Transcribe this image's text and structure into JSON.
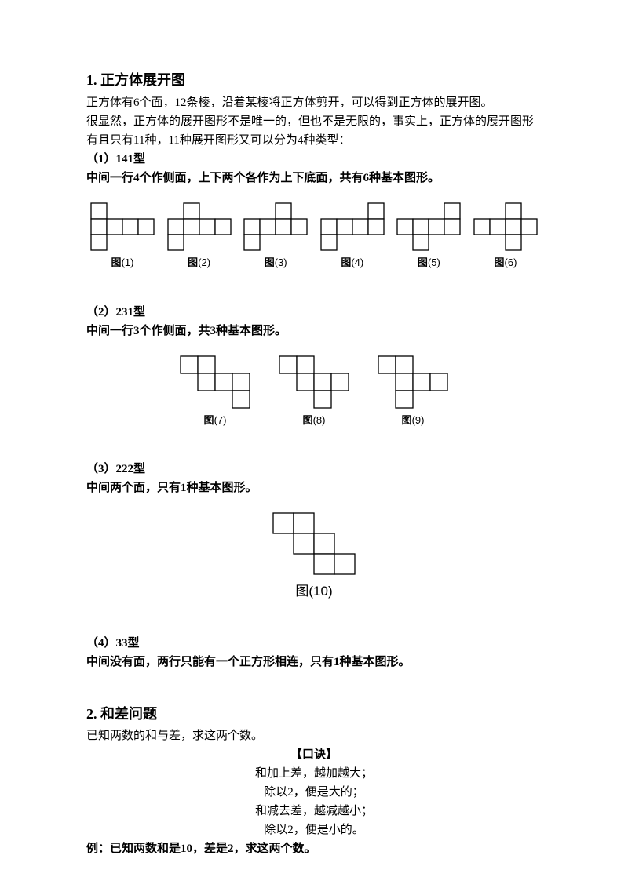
{
  "section1": {
    "title": "1. 正方体展开图",
    "p1": "正方体有6个面，12条棱，沿着某棱将正方体剪开，可以得到正方体的展开图。",
    "p2": "很显然，正方体的展开图形不是唯一的，但也不是无限的，事实上，正方体的展开图形有且只有11种，11种展开图形又可以分为4种类型：",
    "t141_h": "（1）141型",
    "t141_p": "中间一行4个作侧面，上下两个各作为上下底面，共有6种基本图形。",
    "t231_h": "（2）231型",
    "t231_p": "中间一行3个作侧面，共3种基本图形。",
    "t222_h": "（3）222型",
    "t222_p": "中间两个面，只有1种基本图形。",
    "t33_h": "（4）33型",
    "t33_p": "中间没有面，两行只能有一个正方形相连，只有1种基本图形。"
  },
  "section2": {
    "title": "2. 和差问题",
    "p1": "已知两数的和与差，求这两个数。",
    "k_title": "【口诀】",
    "k1": "和加上差，越加越大；",
    "k2": "除以2，便是大的；",
    "k3": "和减去差，越减越小；",
    "k4": "除以2，便是小的。",
    "ex": "例：已知两数和是10，差是2，求这两个数。"
  },
  "labels": {
    "fig_zh": "图",
    "f1": "(1)",
    "f2": "(2)",
    "f3": "(3)",
    "f4": "(4)",
    "f5": "(5)",
    "f6": "(6)",
    "f7": "(7)",
    "f8": "(8)",
    "f9": "(9)",
    "f10": "(10)"
  },
  "cell": 20,
  "cell231": 22,
  "cell222": 26,
  "stroke": "#000000",
  "fill": "#ffffff",
  "figs141": {
    "1": {
      "top_col": 0,
      "bot_col": 0
    },
    "2": {
      "top_col": 1,
      "bot_col": 0
    },
    "3": {
      "top_col": 2,
      "bot_col": 0
    },
    "4": {
      "top_col": 3,
      "bot_col": 0
    },
    "5": {
      "top_col": 3,
      "bot_col": 1
    },
    "6": {
      "top_col": 2,
      "bot_col": 2
    }
  },
  "figs231": {
    "7": {
      "top_cols": [
        0,
        1
      ],
      "mid_cols": [
        1,
        2,
        3
      ],
      "bot_cols": [
        3
      ]
    },
    "8": {
      "top_cols": [
        0,
        1
      ],
      "mid_cols": [
        1,
        2,
        3
      ],
      "bot_cols": [
        2
      ]
    },
    "9": {
      "top_cols": [
        0,
        1
      ],
      "mid_cols": [
        1,
        2,
        3
      ],
      "bot_cols": [
        1
      ]
    }
  },
  "fig222": {
    "r1": [
      0,
      1
    ],
    "r2": [
      1,
      2
    ],
    "r3": [
      2,
      3
    ]
  }
}
